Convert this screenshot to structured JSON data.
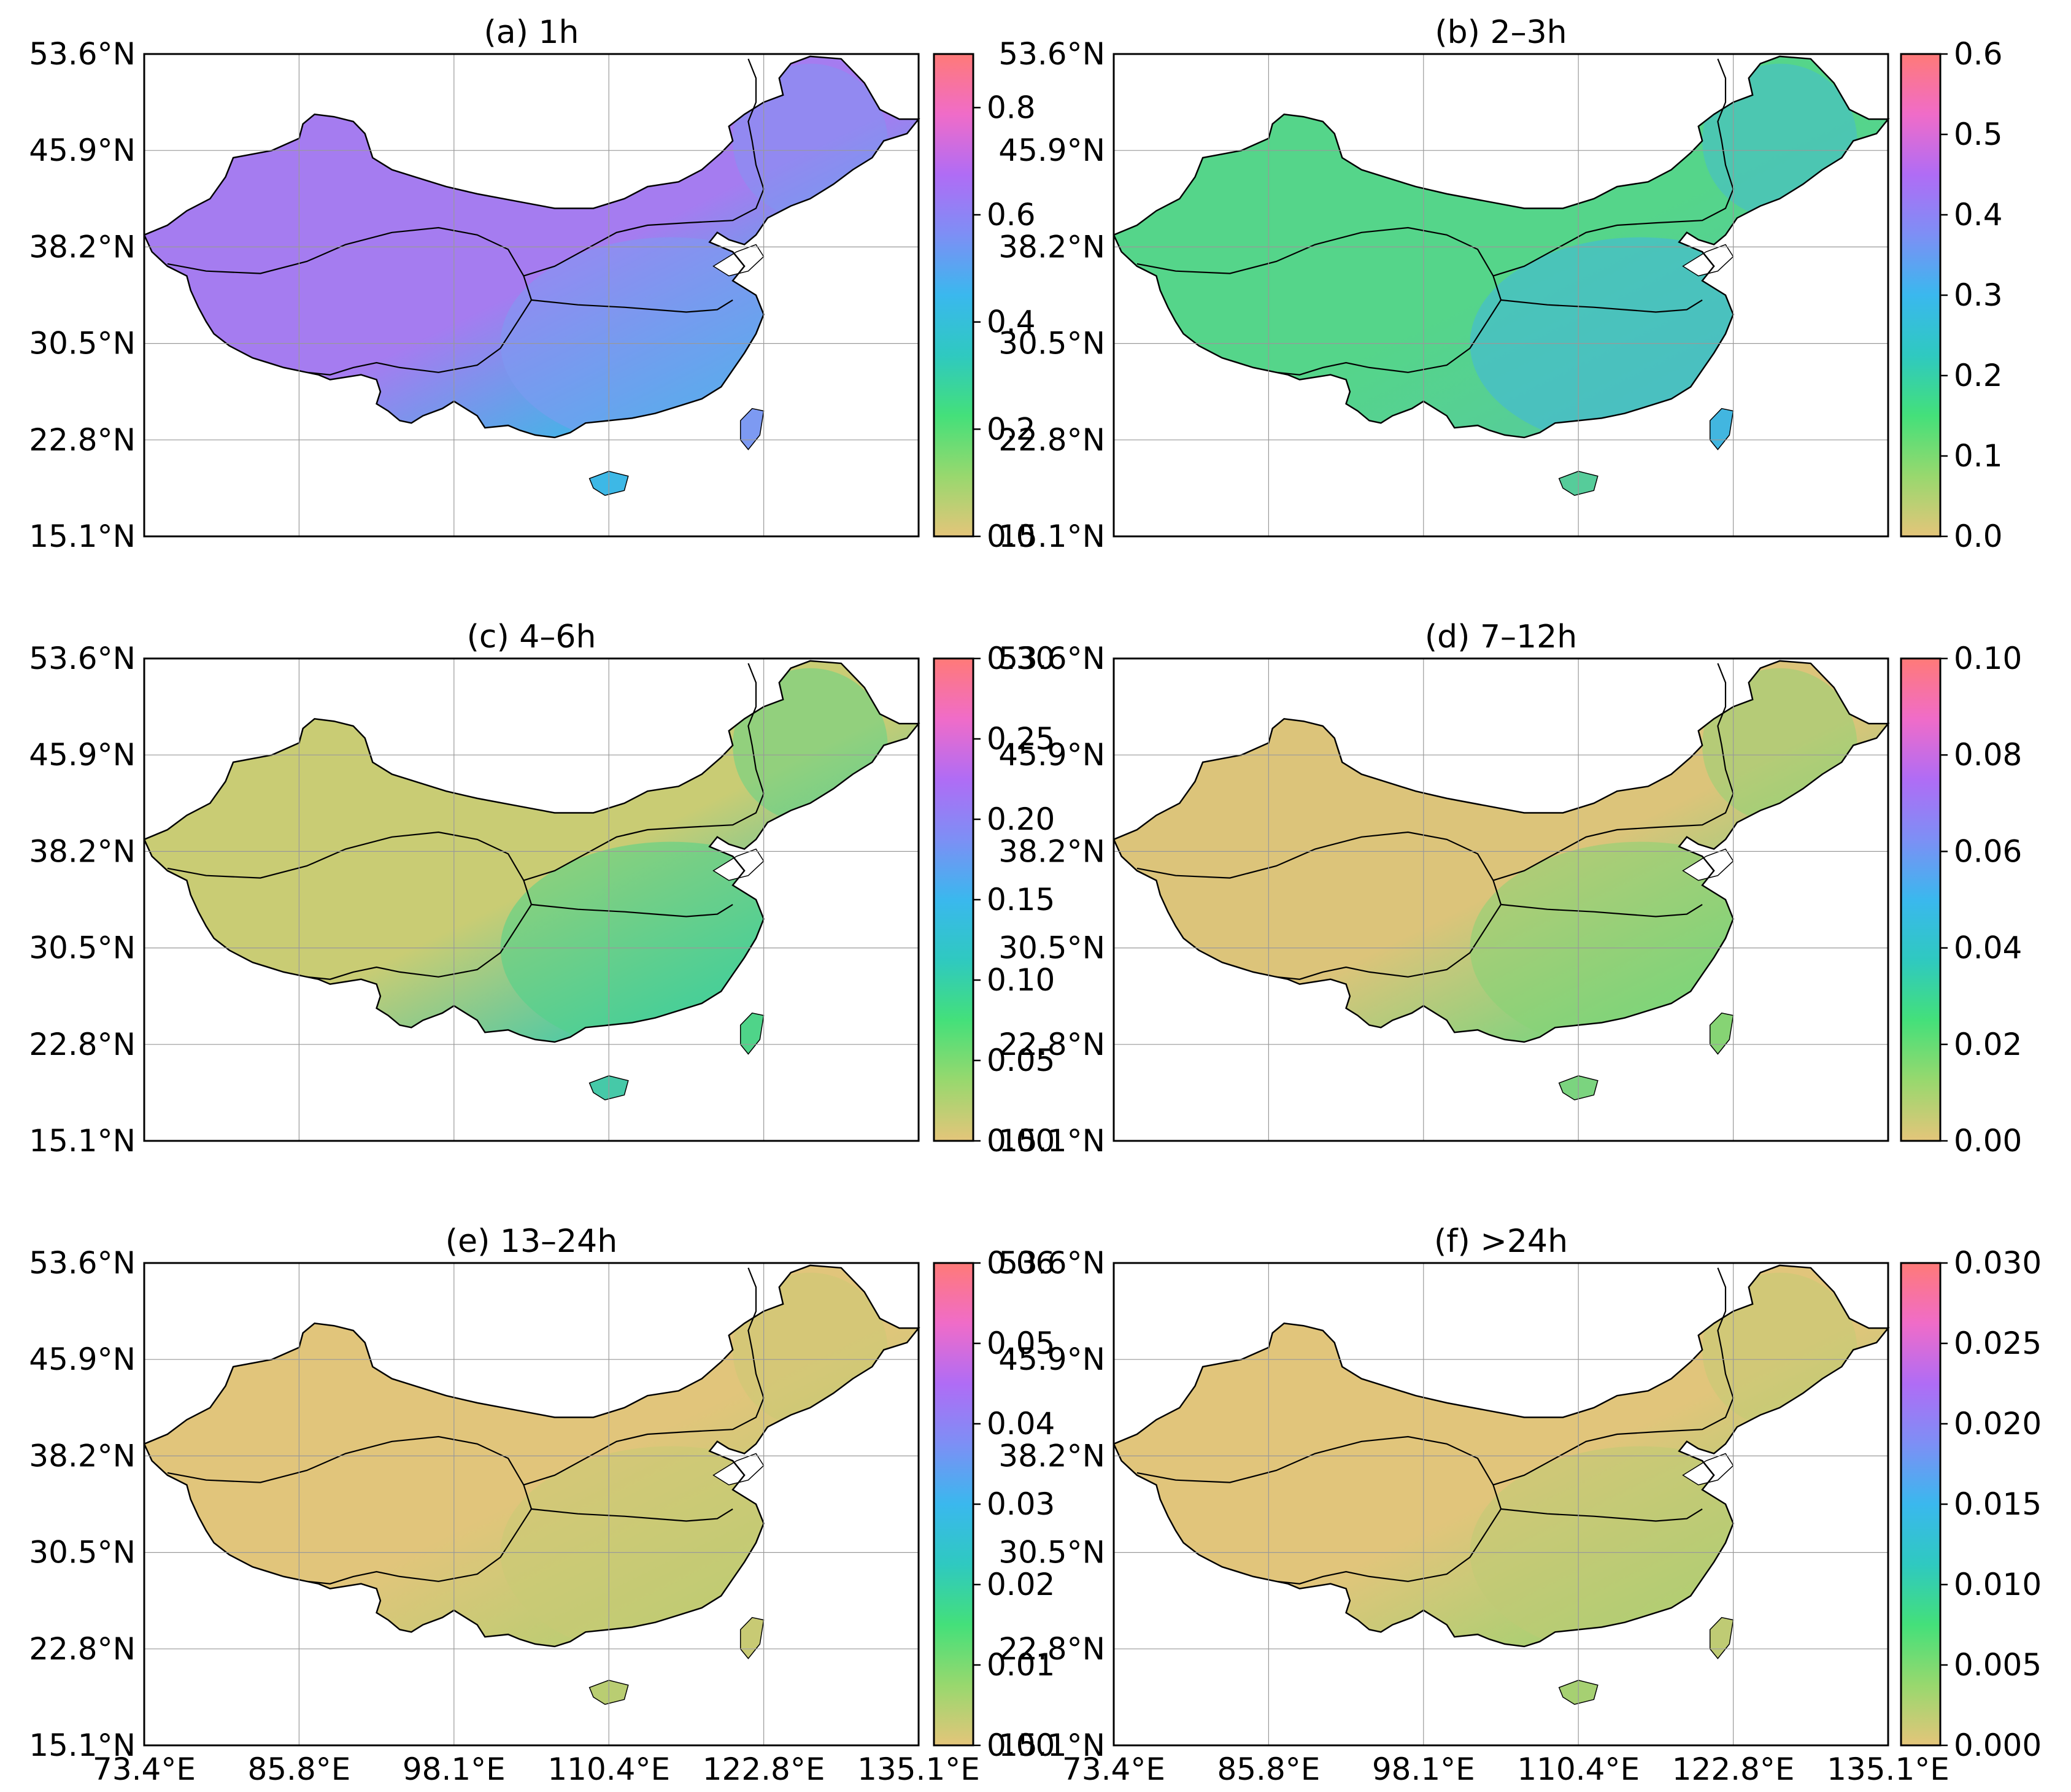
{
  "panels": [
    {
      "id": "a",
      "title": "(a) 1h",
      "colorbar": [
        "0.0",
        "0.2",
        "0.4",
        "0.6",
        "0.8"
      ],
      "vmax_frac_top": 0.9,
      "fill": "#a57cf0",
      "tone_east": "#7d9af2",
      "tone_south": "#3db8e6"
    },
    {
      "id": "b",
      "title": "(b) 2–3h",
      "colorbar": [
        "0.0",
        "0.1",
        "0.2",
        "0.3",
        "0.4",
        "0.5",
        "0.6"
      ],
      "vmax_frac_top": 0.6,
      "fill": "#55d58a",
      "tone_east": "#42b6e0",
      "tone_south": "#56cc9a"
    },
    {
      "id": "c",
      "title": "(c) 4–6h",
      "colorbar": [
        "0.00",
        "0.05",
        "0.10",
        "0.15",
        "0.20",
        "0.25",
        "0.30"
      ],
      "vmax_frac_top": 0.3,
      "fill": "#c9cc74",
      "tone_east": "#4fd489",
      "tone_south": "#46c9a8"
    },
    {
      "id": "d",
      "title": "(d) 7–12h",
      "colorbar": [
        "0.00",
        "0.02",
        "0.04",
        "0.06",
        "0.08",
        "0.10"
      ],
      "vmax_frac_top": 0.1,
      "fill": "#dcc47a",
      "tone_east": "#86d474",
      "tone_south": "#7bd47f"
    },
    {
      "id": "e",
      "title": "(e) 13–24h",
      "colorbar": [
        "0.00",
        "0.01",
        "0.02",
        "0.03",
        "0.04",
        "0.05",
        "0.06"
      ],
      "vmax_frac_top": 0.06,
      "fill": "#e1c57b",
      "tone_east": "#c8ca74",
      "tone_south": "#b9cd72"
    },
    {
      "id": "f",
      "title": "(f) >24h",
      "colorbar": [
        "0.000",
        "0.005",
        "0.010",
        "0.015",
        "0.020",
        "0.025",
        "0.030"
      ],
      "vmax_frac_top": 0.03,
      "fill": "#e1c57b",
      "tone_east": "#bfcb74",
      "tone_south": "#a6d072"
    }
  ],
  "lat_ticks": [
    "53.6°N",
    "45.9°N",
    "38.2°N",
    "30.5°N",
    "22.8°N",
    "15.1°N"
  ],
  "lon_ticks": [
    "73.4°E",
    "85.8°E",
    "98.1°E",
    "110.4°E",
    "122.8°E",
    "135.1°E"
  ],
  "colormap": [
    "#e4c57a",
    "#98d86e",
    "#44e07a",
    "#2fc9c0",
    "#3ab8ee",
    "#7d8ff5",
    "#b06cf5",
    "#f06cc8",
    "#ff7a78"
  ]
}
